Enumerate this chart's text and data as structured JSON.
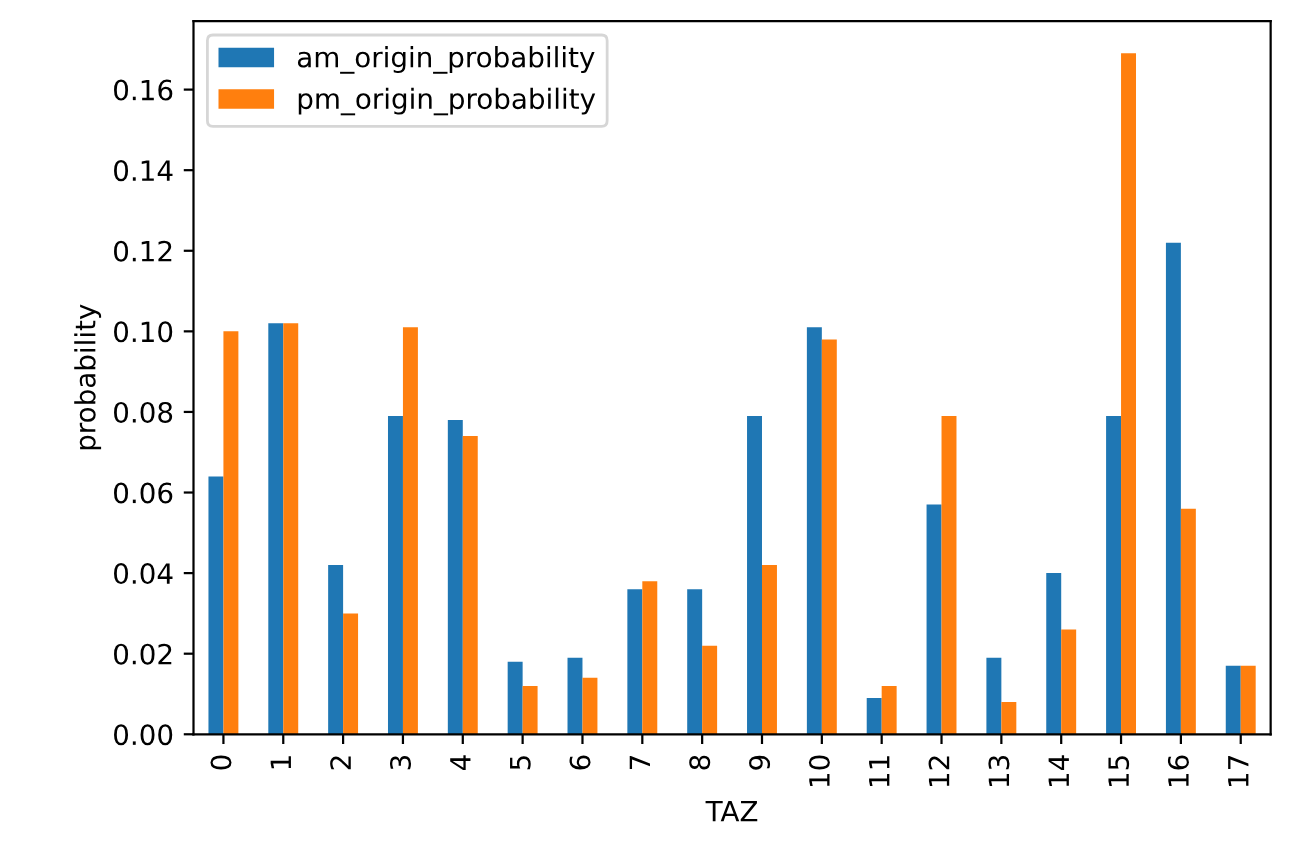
{
  "chart_data": {
    "type": "bar",
    "xlabel": "TAZ",
    "ylabel": "probability",
    "categories": [
      "0",
      "1",
      "2",
      "3",
      "4",
      "5",
      "6",
      "7",
      "8",
      "9",
      "10",
      "11",
      "12",
      "13",
      "14",
      "15",
      "16",
      "17"
    ],
    "series": [
      {
        "name": "am_origin_probability",
        "color": "#1f77b4",
        "values": [
          0.064,
          0.102,
          0.042,
          0.079,
          0.078,
          0.018,
          0.019,
          0.036,
          0.036,
          0.079,
          0.101,
          0.009,
          0.057,
          0.019,
          0.04,
          0.079,
          0.122,
          0.017
        ]
      },
      {
        "name": "pm_origin_probability",
        "color": "#ff7f0e",
        "values": [
          0.1,
          0.102,
          0.03,
          0.101,
          0.074,
          0.012,
          0.014,
          0.038,
          0.022,
          0.042,
          0.098,
          0.012,
          0.079,
          0.008,
          0.026,
          0.169,
          0.056,
          0.017
        ]
      }
    ],
    "ylim": [
      0,
      0.177
    ],
    "yticks": [
      {
        "value": 0,
        "label": "0.00"
      },
      {
        "value": 0.02,
        "label": "0.02"
      },
      {
        "value": 0.04,
        "label": "0.04"
      },
      {
        "value": 0.06,
        "label": "0.06"
      },
      {
        "value": 0.08,
        "label": "0.08"
      },
      {
        "value": 0.1,
        "label": "0.10"
      },
      {
        "value": 0.12,
        "label": "0.12"
      },
      {
        "value": 0.14,
        "label": "0.14"
      },
      {
        "value": 0.16,
        "label": "0.16"
      }
    ],
    "legend": "top left",
    "grid": false
  }
}
